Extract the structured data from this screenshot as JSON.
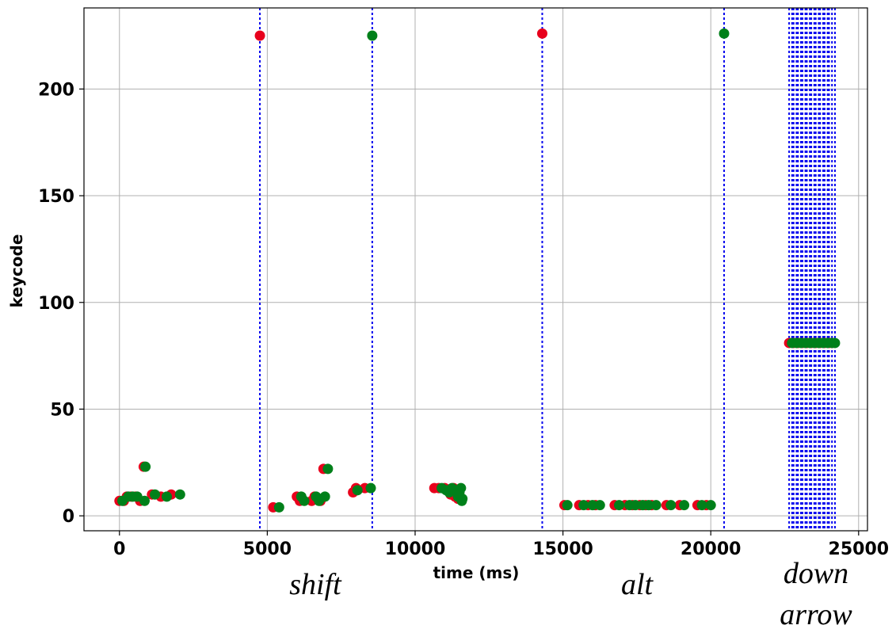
{
  "chart_data": {
    "type": "scatter",
    "title": "",
    "xlabel": "time (ms)",
    "ylabel": "keycode",
    "xlim": [
      -1200,
      25300
    ],
    "ylim": [
      -7,
      238
    ],
    "xticks": [
      0,
      5000,
      10000,
      15000,
      20000,
      25000
    ],
    "yticks": [
      0,
      50,
      100,
      150,
      200
    ],
    "grid": true,
    "colors": {
      "press": "#e8001c",
      "release": "#00801a",
      "marker_line": "#0000ee",
      "grid": "#b0b0b0"
    },
    "series": [
      {
        "color": "press",
        "points": [
          [
            0,
            7
          ],
          [
            150,
            7
          ],
          [
            250,
            9
          ],
          [
            400,
            9
          ],
          [
            550,
            9
          ],
          [
            700,
            7
          ],
          [
            820,
            23
          ],
          [
            1100,
            10
          ],
          [
            1400,
            9
          ],
          [
            1750,
            10
          ],
          [
            4750,
            225
          ],
          [
            5200,
            4
          ],
          [
            6000,
            9
          ],
          [
            6100,
            7
          ],
          [
            6500,
            7
          ],
          [
            6600,
            9
          ],
          [
            6800,
            7
          ],
          [
            6900,
            22
          ],
          [
            7900,
            11
          ],
          [
            8000,
            13
          ],
          [
            8300,
            13
          ],
          [
            10650,
            13
          ],
          [
            10800,
            13
          ],
          [
            11000,
            13
          ],
          [
            11100,
            12
          ],
          [
            11200,
            10
          ],
          [
            11300,
            13
          ],
          [
            11350,
            9
          ],
          [
            11400,
            10
          ],
          [
            11450,
            8
          ],
          [
            14300,
            226
          ],
          [
            15050,
            5
          ],
          [
            15550,
            5
          ],
          [
            15850,
            5
          ],
          [
            16100,
            5
          ],
          [
            16750,
            5
          ],
          [
            17100,
            5
          ],
          [
            17350,
            5
          ],
          [
            17600,
            5
          ],
          [
            17800,
            5
          ],
          [
            18000,
            5
          ],
          [
            18500,
            5
          ],
          [
            18950,
            5
          ],
          [
            19550,
            5
          ],
          [
            19850,
            5
          ],
          [
            22650,
            81
          ],
          [
            22800,
            81
          ],
          [
            22950,
            81
          ],
          [
            23100,
            81
          ],
          [
            23250,
            81
          ],
          [
            23400,
            81
          ],
          [
            23550,
            81
          ],
          [
            23700,
            81
          ],
          [
            23850,
            81
          ],
          [
            24000,
            81
          ],
          [
            24100,
            81
          ]
        ]
      },
      {
        "color": "release",
        "points": [
          [
            100,
            7
          ],
          [
            300,
            9
          ],
          [
            450,
            9
          ],
          [
            600,
            9
          ],
          [
            850,
            7
          ],
          [
            880,
            23
          ],
          [
            1200,
            10
          ],
          [
            1600,
            9
          ],
          [
            2050,
            10
          ],
          [
            8550,
            225
          ],
          [
            5400,
            4
          ],
          [
            6150,
            9
          ],
          [
            6250,
            7
          ],
          [
            6650,
            9
          ],
          [
            6750,
            7
          ],
          [
            6950,
            9
          ],
          [
            7050,
            22
          ],
          [
            8050,
            12
          ],
          [
            8500,
            13
          ],
          [
            10900,
            13
          ],
          [
            11050,
            12
          ],
          [
            11150,
            11
          ],
          [
            11250,
            13
          ],
          [
            11350,
            12
          ],
          [
            11450,
            9
          ],
          [
            11500,
            11
          ],
          [
            11550,
            13
          ],
          [
            11580,
            7
          ],
          [
            11600,
            8
          ],
          [
            20450,
            226
          ],
          [
            15150,
            5
          ],
          [
            15700,
            5
          ],
          [
            16000,
            5
          ],
          [
            16250,
            5
          ],
          [
            16900,
            5
          ],
          [
            17250,
            5
          ],
          [
            17450,
            5
          ],
          [
            17700,
            5
          ],
          [
            17900,
            5
          ],
          [
            18150,
            5
          ],
          [
            18650,
            5
          ],
          [
            19100,
            5
          ],
          [
            19700,
            5
          ],
          [
            20000,
            5
          ],
          [
            22750,
            81
          ],
          [
            22900,
            81
          ],
          [
            23050,
            81
          ],
          [
            23200,
            81
          ],
          [
            23350,
            81
          ],
          [
            23500,
            81
          ],
          [
            23650,
            81
          ],
          [
            23800,
            81
          ],
          [
            23950,
            81
          ],
          [
            24100,
            81
          ],
          [
            24200,
            81
          ]
        ]
      }
    ],
    "marker_lines_x": [
      4750,
      8550,
      14300,
      20450,
      22650,
      22750,
      22800,
      22900,
      22950,
      23050,
      23100,
      23200,
      23250,
      23350,
      23400,
      23500,
      23550,
      23650,
      23700,
      23800,
      23850,
      23950,
      24000,
      24100,
      24200
    ],
    "annotations": [
      "shift",
      "alt",
      "down",
      "arrow"
    ]
  }
}
